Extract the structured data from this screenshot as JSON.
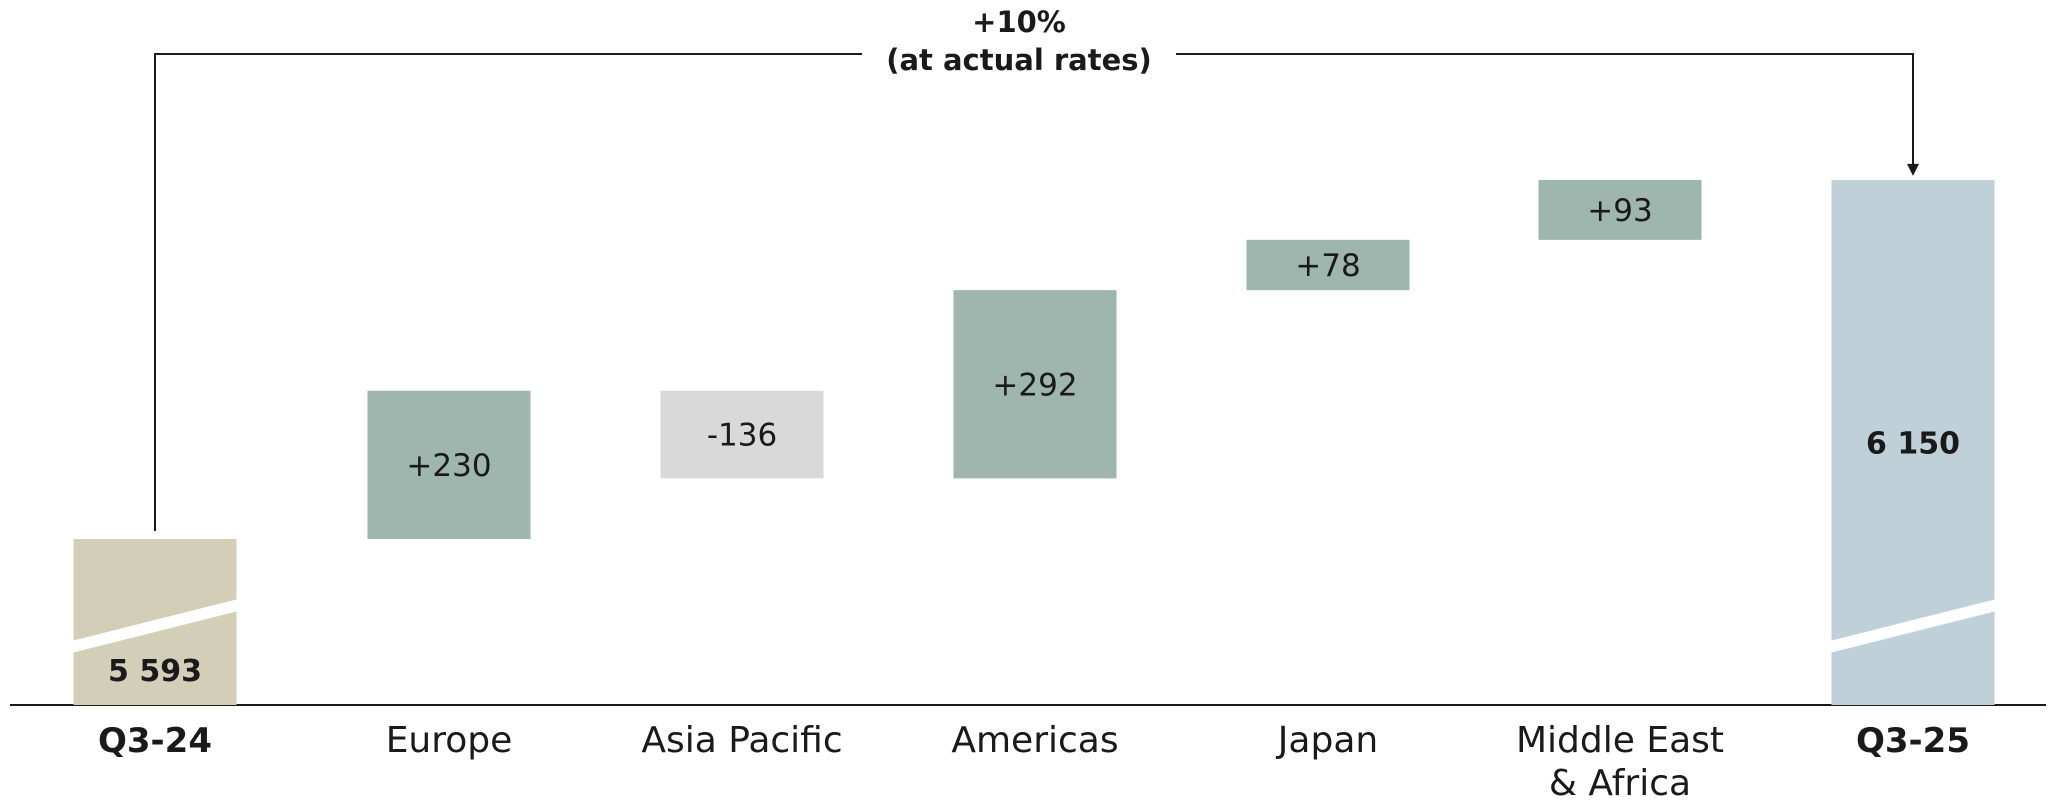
{
  "chart_data": {
    "type": "waterfall",
    "title": "",
    "xlabel": "",
    "ylabel": "",
    "categories": [
      "Q3-24",
      "Europe",
      "Asia Pacific",
      "Americas",
      "Japan",
      "Middle East & Africa",
      "Q3-25"
    ],
    "category_lines": [
      [
        "Q3-24"
      ],
      [
        "Europe"
      ],
      [
        "Asia Pacific"
      ],
      [
        "Americas"
      ],
      [
        "Japan"
      ],
      [
        "Middle East",
        "& Africa"
      ],
      [
        "Q3-25"
      ]
    ],
    "bars": [
      {
        "category": "Q3-24",
        "kind": "total",
        "value": 5593,
        "label": "5 593",
        "color": "#d3ceb8"
      },
      {
        "category": "Europe",
        "kind": "delta",
        "value": 230,
        "label": "+230",
        "color": "#9fb6ae"
      },
      {
        "category": "Asia Pacific",
        "kind": "delta",
        "value": -136,
        "label": "-136",
        "color": "#d9d9d9"
      },
      {
        "category": "Americas",
        "kind": "delta",
        "value": 292,
        "label": "+292",
        "color": "#9fb6ae"
      },
      {
        "category": "Japan",
        "kind": "delta",
        "value": 78,
        "label": "+78",
        "color": "#9fb6ae"
      },
      {
        "category": "Middle East & Africa",
        "kind": "delta",
        "value": 93,
        "label": "+93",
        "color": "#9fb6ae"
      },
      {
        "category": "Q3-25",
        "kind": "total",
        "value": 6150,
        "label": "6 150",
        "color": "#bfd0d8"
      }
    ],
    "axis_break": true,
    "grid": false,
    "legend": "none",
    "annotation": {
      "lines": [
        "+10%",
        "(at actual rates)"
      ],
      "from": "Q3-24",
      "to": "Q3-25"
    }
  }
}
